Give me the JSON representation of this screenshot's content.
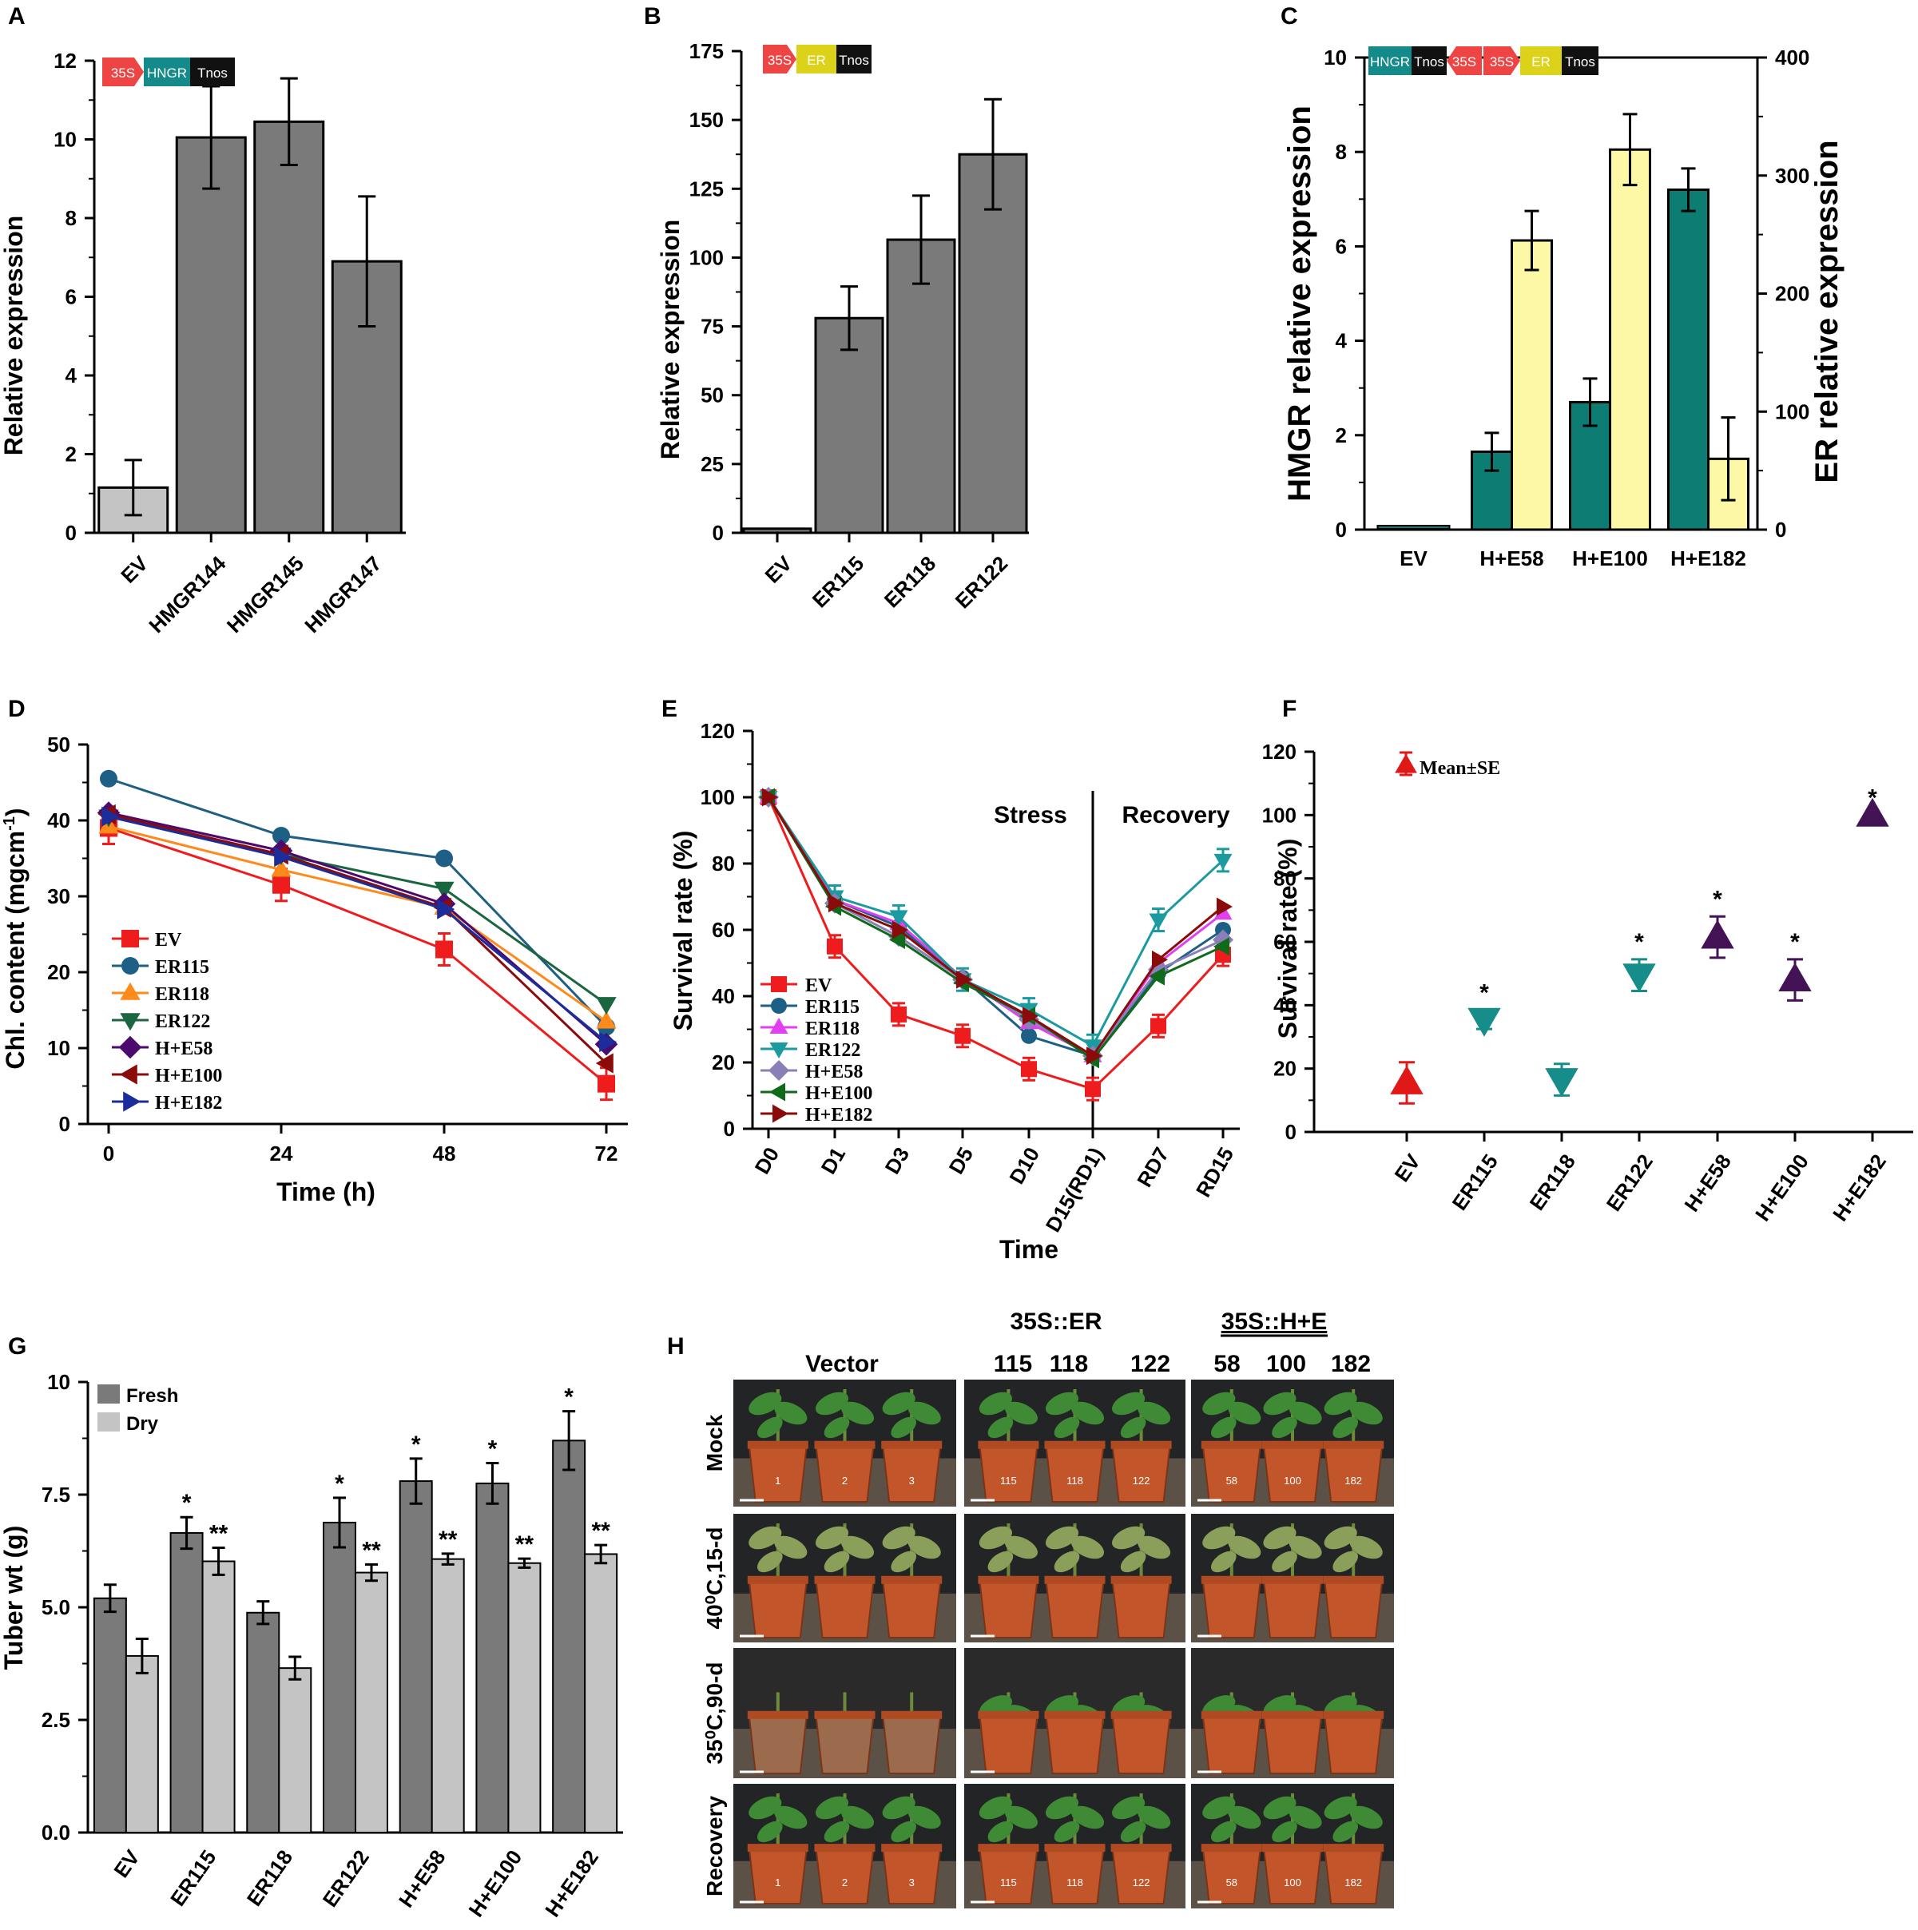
{
  "colors": {
    "bar_gray": "#7a7a7a",
    "bar_light": "#c4c4c4",
    "teal": "#0d7c72",
    "yellow": "#fdf8a6",
    "EV": "#ee1c1c",
    "ER115": "#1e5f86",
    "ER118": "#ff8a1c",
    "ER118_E": "#e040ef",
    "ER122": "#1a6640",
    "ER122_E": "#1b9aa0",
    "HE58": "#4c0a6f",
    "HE58_E": "#8a7fb6",
    "HE100": "#8b0a0a",
    "HE100_E": "#0f6a1a",
    "HE182": "#1a2d9a",
    "HE182_E": "#7a0e16",
    "F_red": "#e01818",
    "F_teal": "#168d8a",
    "F_purple": "#441356",
    "promoter": "#ef4444",
    "gene_hmgr": "#148a8a",
    "gene_er": "#ddd21a",
    "terminator": "#111111"
  },
  "panels": {
    "A": "A",
    "B": "B",
    "C": "C",
    "D": "D",
    "E": "E",
    "F": "F",
    "G": "G",
    "H": "H"
  },
  "constructs": {
    "p35s": "35S",
    "hmgr": "HNGR",
    "er": "ER",
    "tnos": "Tnos"
  },
  "chart_data": [
    {
      "panel": "A",
      "type": "bar",
      "categories": [
        "EV",
        "HMGR144",
        "HMGR145",
        "HMGR147"
      ],
      "values": [
        1.15,
        10.05,
        10.45,
        6.9
      ],
      "errors": [
        0.7,
        1.3,
        1.1,
        1.65
      ],
      "ylabel": "Relative expression",
      "ylim": [
        0,
        12
      ],
      "yticks": [
        "0",
        "2",
        "4",
        "6",
        "8",
        "10",
        "12"
      ]
    },
    {
      "panel": "B",
      "type": "bar",
      "categories": [
        "EV",
        "ER115",
        "ER118",
        "ER122"
      ],
      "values": [
        1.5,
        78,
        106.5,
        137.5
      ],
      "errors": [
        0.5,
        11.5,
        16,
        20
      ],
      "ylabel": "Relative expression",
      "ylim": [
        0,
        175
      ],
      "yticks": [
        "0",
        "25",
        "50",
        "75",
        "100",
        "125",
        "150",
        "175"
      ]
    },
    {
      "panel": "C",
      "type": "bar",
      "categories": [
        "EV",
        "H+E58",
        "H+E100",
        "H+E182"
      ],
      "series": [
        {
          "name": "HMGR",
          "values": [
            0.05,
            1.65,
            2.7,
            7.2
          ],
          "errors": [
            0,
            0.4,
            0.5,
            0.45
          ]
        },
        {
          "name": "ER",
          "values": [
            0,
            245,
            322,
            60
          ],
          "errors": [
            0,
            25,
            30,
            35
          ]
        }
      ],
      "ylabel": "HMGR relative expression",
      "y2label": "ER relative expression",
      "ylim": [
        0,
        10
      ],
      "y2lim": [
        0,
        400
      ],
      "yticks": [
        "0",
        "2",
        "4",
        "6",
        "8",
        "10"
      ],
      "y2ticks": [
        "0",
        "100",
        "200",
        "300",
        "400"
      ]
    },
    {
      "panel": "D",
      "type": "line",
      "x": [
        0,
        24,
        48,
        72
      ],
      "xticks": [
        "0",
        "24",
        "48",
        "72"
      ],
      "series": [
        {
          "name": "EV",
          "values": [
            39,
            31.5,
            23,
            5.3
          ]
        },
        {
          "name": "ER115",
          "values": [
            45.5,
            38,
            35,
            12.8
          ]
        },
        {
          "name": "ER118",
          "values": [
            39.2,
            33.5,
            28.5,
            13.5
          ]
        },
        {
          "name": "ER122",
          "values": [
            40.5,
            35.5,
            31,
            15.8
          ]
        },
        {
          "name": "H+E58",
          "values": [
            41,
            36,
            29,
            10.5
          ]
        },
        {
          "name": "H+E100",
          "values": [
            40.8,
            35.5,
            28.5,
            8
          ]
        },
        {
          "name": "H+E182",
          "values": [
            40.5,
            35.2,
            28.3,
            10.8
          ]
        }
      ],
      "xlabel": "Time (h)",
      "ylabel": "Chl. content (mgcm",
      "ylabel_sup": "-1",
      "ylabel_end": ")",
      "ylim": [
        0,
        50
      ],
      "yticks": [
        "0",
        "10",
        "20",
        "30",
        "40",
        "50"
      ]
    },
    {
      "panel": "E",
      "type": "line",
      "categories": [
        "D0",
        "D1",
        "D3",
        "D5",
        "D10",
        "D15(RD1)",
        "RD7",
        "RD15"
      ],
      "series": [
        {
          "name": "EV",
          "values": [
            100,
            55,
            34.5,
            28,
            18,
            12,
            31,
            52.5
          ]
        },
        {
          "name": "ER115",
          "values": [
            100,
            69,
            61,
            45.5,
            28,
            22,
            47,
            60
          ]
        },
        {
          "name": "ER118",
          "values": [
            100,
            69,
            62,
            45.5,
            32,
            22,
            50,
            65
          ]
        },
        {
          "name": "ER122",
          "values": [
            100,
            70,
            64,
            45,
            36,
            25,
            63,
            81
          ]
        },
        {
          "name": "H+E58",
          "values": [
            100,
            68,
            58,
            45,
            33,
            22,
            48,
            57
          ]
        },
        {
          "name": "H+E100",
          "values": [
            100,
            67,
            57,
            44,
            34,
            21,
            46,
            55
          ]
        },
        {
          "name": "H+E182",
          "values": [
            100,
            68,
            60,
            45,
            34,
            22,
            51,
            67
          ]
        }
      ],
      "xlabel": "Time",
      "ylabel": "Survival rate (%)",
      "ylim": [
        0,
        120
      ],
      "yticks": [
        "0",
        "20",
        "40",
        "60",
        "80",
        "100",
        "120"
      ],
      "annotations": {
        "stress": "Stress",
        "recovery": "Recovery"
      }
    },
    {
      "panel": "F",
      "type": "scatter",
      "categories": [
        "EV",
        "ER115",
        "ER118",
        "ER122",
        "H+E58",
        "H+E100",
        "H+E182"
      ],
      "values": [
        15.5,
        35.5,
        16.5,
        49.5,
        61.5,
        48,
        100
      ],
      "errors": [
        6.5,
        3,
        5,
        5,
        6.5,
        6.5,
        0
      ],
      "marker": [
        "up",
        "down",
        "down",
        "down",
        "up",
        "up",
        "up"
      ],
      "sig": [
        "",
        "*",
        "",
        "*",
        "*",
        "*",
        "*"
      ],
      "ylabel": "Survival rate (%)",
      "ylim": [
        0,
        120
      ],
      "yticks": [
        "0",
        "20",
        "40",
        "60",
        "80",
        "100",
        "120"
      ],
      "legend": "Mean±SE"
    },
    {
      "panel": "G",
      "type": "bar",
      "categories": [
        "EV",
        "ER115",
        "ER118",
        "ER122",
        "H+E58",
        "H+E100",
        "H+E182"
      ],
      "series": [
        {
          "name": "Fresh",
          "values": [
            5.2,
            6.65,
            4.88,
            6.88,
            7.8,
            7.75,
            8.7
          ],
          "errors": [
            0.3,
            0.35,
            0.25,
            0.55,
            0.5,
            0.45,
            0.65
          ],
          "sig": [
            "",
            "*",
            "",
            "*",
            "*",
            "*",
            "*"
          ]
        },
        {
          "name": "Dry",
          "values": [
            3.92,
            6.02,
            3.65,
            5.77,
            6.07,
            5.98,
            6.18
          ],
          "errors": [
            0.38,
            0.3,
            0.25,
            0.18,
            0.12,
            0.1,
            0.2
          ],
          "sig": [
            "",
            "**",
            "",
            "**",
            "**",
            "**",
            "**"
          ]
        }
      ],
      "ylabel": "Tuber wt (g)",
      "ylim": [
        0,
        10
      ],
      "yticks": [
        "0.0",
        "2.5",
        "5.0",
        "7.5",
        "10"
      ]
    }
  ],
  "panelH": {
    "groups": [
      "Vector",
      "35S::ER",
      "35S::H+E"
    ],
    "lines_er": [
      "115",
      "118",
      "122"
    ],
    "lines_he": [
      "58",
      "100",
      "182"
    ],
    "rows": [
      "Mock",
      "40⁰C,15-d",
      "35⁰C,90-d",
      "Recovery"
    ],
    "pot_labels": [
      [
        "1",
        "2",
        "3"
      ],
      [
        "115",
        "118",
        "122"
      ],
      [
        "58",
        "100",
        "182"
      ]
    ]
  }
}
